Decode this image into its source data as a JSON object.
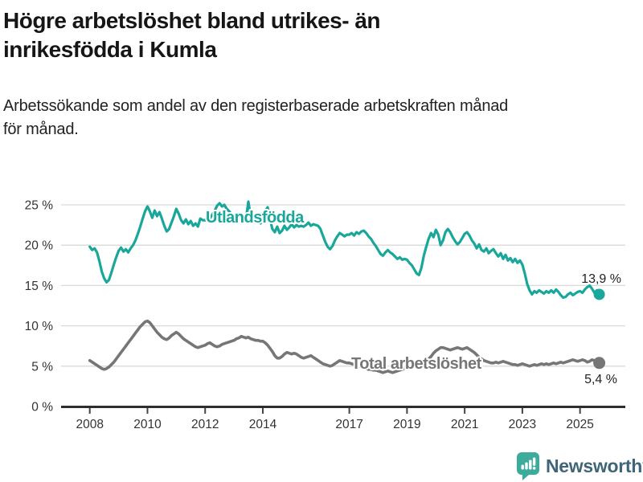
{
  "header": {
    "title_lines": [
      "Högre arbetslöshet bland utrikes- än",
      "inrikesfödda i Kumla"
    ],
    "subtitle_lines": [
      "Arbetssökande som andel av den registerbaserade arbetskraften månad",
      "för månad."
    ]
  },
  "footer": {
    "brand": "Newsworthy",
    "logo_icon": "bar-chart-exclamation-speech-bubble",
    "logo_color": "#3bab9c",
    "brand_text_color": "#3f6577"
  },
  "chart_data": {
    "type": "line",
    "title": "Högre arbetslöshet bland utrikes- än inrikesfödda i Kumla",
    "subtitle": "Arbetssökande som andel av den registerbaserade arbetskraften månad för månad.",
    "unit": "percent",
    "frequency": "monthly",
    "start": "2008-01",
    "end": "2025-09",
    "grid": "horizontal",
    "legend_position": "inline-labels",
    "x_tick_years": [
      2008,
      2010,
      2012,
      2014,
      2017,
      2019,
      2021,
      2023,
      2025
    ],
    "y_ticks": [
      0,
      5,
      10,
      15,
      20,
      25
    ],
    "y_tick_label_suffix": " %",
    "ylim": [
      0,
      26
    ],
    "axis_color": "#2e2e2e",
    "grid_color": "#d9d9d9",
    "series": [
      {
        "name": "Utlandsfödda",
        "color": "#18a79a",
        "end_label": "13,9 %",
        "end_value": 13.9,
        "values": [
          19.8,
          19.4,
          19.6,
          19.1,
          18.0,
          16.7,
          15.9,
          15.4,
          15.7,
          16.6,
          17.6,
          18.5,
          19.3,
          19.7,
          19.2,
          19.5,
          19.1,
          19.6,
          20.0,
          20.6,
          21.4,
          22.3,
          23.3,
          24.2,
          24.8,
          24.2,
          23.4,
          24.3,
          23.6,
          24.1,
          23.3,
          22.4,
          21.7,
          22.0,
          22.8,
          23.6,
          24.5,
          23.9,
          23.1,
          22.7,
          23.2,
          22.6,
          23.0,
          22.4,
          22.7,
          22.3,
          23.3,
          23.1,
          23.1,
          23.0,
          23.3,
          23.8,
          24.3,
          24.9,
          25.2,
          24.8,
          25.0,
          24.5,
          24.2,
          23.8,
          23.4,
          23.1,
          23.5,
          23.2,
          22.9,
          23.3,
          25.4,
          23.5,
          23.0,
          22.8,
          23.1,
          22.7,
          23.0,
          24.2,
          24.7,
          23.2,
          22.0,
          21.6,
          22.3,
          21.5,
          21.8,
          22.4,
          21.9,
          22.2,
          22.6,
          22.2,
          22.5,
          22.3,
          22.4,
          22.3,
          22.5,
          22.8,
          22.4,
          22.6,
          22.5,
          22.4,
          22.0,
          21.2,
          20.4,
          19.8,
          19.5,
          19.9,
          20.6,
          21.1,
          21.5,
          21.3,
          21.1,
          21.3,
          21.3,
          21.5,
          21.2,
          21.6,
          21.4,
          21.7,
          21.8,
          21.5,
          21.1,
          20.8,
          20.3,
          19.9,
          19.4,
          18.9,
          18.7,
          19.1,
          19.4,
          19.1,
          18.9,
          18.6,
          18.3,
          18.5,
          18.2,
          18.3,
          18.2,
          17.8,
          17.5,
          17.0,
          16.5,
          16.3,
          17.2,
          18.7,
          19.8,
          20.8,
          21.5,
          21.0,
          21.9,
          21.3,
          20.0,
          20.6,
          21.6,
          22.0,
          21.6,
          21.0,
          20.5,
          20.1,
          20.4,
          20.9,
          21.4,
          21.6,
          21.2,
          20.6,
          20.2,
          19.6,
          20.1,
          19.4,
          19.2,
          19.6,
          19.0,
          19.3,
          19.5,
          19.0,
          18.6,
          19.0,
          18.3,
          18.8,
          18.1,
          18.4,
          17.9,
          18.3,
          17.8,
          18.1,
          17.6,
          16.5,
          15.2,
          14.4,
          13.9,
          14.3,
          14.1,
          14.4,
          14.2,
          14.0,
          14.3,
          14.1,
          14.4,
          14.1,
          14.5,
          14.2,
          13.8,
          13.5,
          13.6,
          13.9,
          14.1,
          13.8,
          14.0,
          14.2,
          14.3,
          14.1,
          14.5,
          14.8,
          15.0,
          14.6,
          14.1,
          14.4,
          13.9
        ]
      },
      {
        "name": "Total arbetslöshet",
        "color": "#767676",
        "end_label": "5,4 %",
        "end_value": 5.4,
        "values": [
          5.7,
          5.5,
          5.3,
          5.1,
          4.9,
          4.7,
          4.6,
          4.7,
          4.9,
          5.2,
          5.5,
          5.9,
          6.3,
          6.7,
          7.1,
          7.5,
          7.9,
          8.3,
          8.7,
          9.1,
          9.5,
          9.9,
          10.2,
          10.5,
          10.6,
          10.4,
          10.0,
          9.6,
          9.2,
          8.9,
          8.6,
          8.4,
          8.3,
          8.5,
          8.8,
          9.0,
          9.2,
          9.0,
          8.7,
          8.4,
          8.2,
          8.0,
          7.8,
          7.6,
          7.4,
          7.3,
          7.4,
          7.5,
          7.6,
          7.8,
          7.9,
          7.7,
          7.5,
          7.4,
          7.5,
          7.7,
          7.8,
          7.9,
          8.0,
          8.1,
          8.2,
          8.4,
          8.5,
          8.7,
          8.6,
          8.5,
          8.6,
          8.4,
          8.3,
          8.2,
          8.2,
          8.1,
          8.1,
          7.9,
          7.6,
          7.2,
          6.8,
          6.3,
          6.0,
          6.0,
          6.2,
          6.5,
          6.7,
          6.6,
          6.5,
          6.6,
          6.5,
          6.3,
          6.1,
          6.0,
          6.1,
          6.2,
          6.3,
          6.1,
          5.9,
          5.7,
          5.5,
          5.3,
          5.2,
          5.1,
          5.0,
          5.1,
          5.3,
          5.5,
          5.7,
          5.6,
          5.5,
          5.4,
          5.4,
          5.3,
          5.2,
          5.1,
          5.0,
          4.9,
          4.8,
          4.7,
          4.6,
          4.6,
          4.5,
          4.5,
          4.4,
          4.3,
          4.2,
          4.3,
          4.4,
          4.3,
          4.2,
          4.3,
          4.4,
          4.5,
          4.6,
          4.7,
          4.8,
          4.7,
          4.8,
          4.9,
          5.0,
          5.1,
          5.2,
          5.4,
          5.6,
          5.9,
          6.2,
          6.6,
          6.9,
          7.1,
          7.3,
          7.3,
          7.2,
          7.1,
          7.0,
          7.1,
          7.2,
          7.3,
          7.2,
          7.1,
          7.2,
          7.3,
          7.1,
          6.9,
          6.7,
          6.4,
          6.1,
          5.9,
          5.7,
          5.6,
          5.5,
          5.4,
          5.4,
          5.5,
          5.4,
          5.5,
          5.6,
          5.5,
          5.4,
          5.3,
          5.2,
          5.2,
          5.1,
          5.2,
          5.3,
          5.2,
          5.1,
          5.0,
          5.1,
          5.2,
          5.1,
          5.2,
          5.3,
          5.2,
          5.3,
          5.2,
          5.3,
          5.4,
          5.3,
          5.4,
          5.5,
          5.4,
          5.5,
          5.6,
          5.7,
          5.8,
          5.7,
          5.6,
          5.7,
          5.8,
          5.7,
          5.5,
          5.6,
          5.8,
          5.7,
          5.5,
          5.4
        ]
      }
    ]
  }
}
